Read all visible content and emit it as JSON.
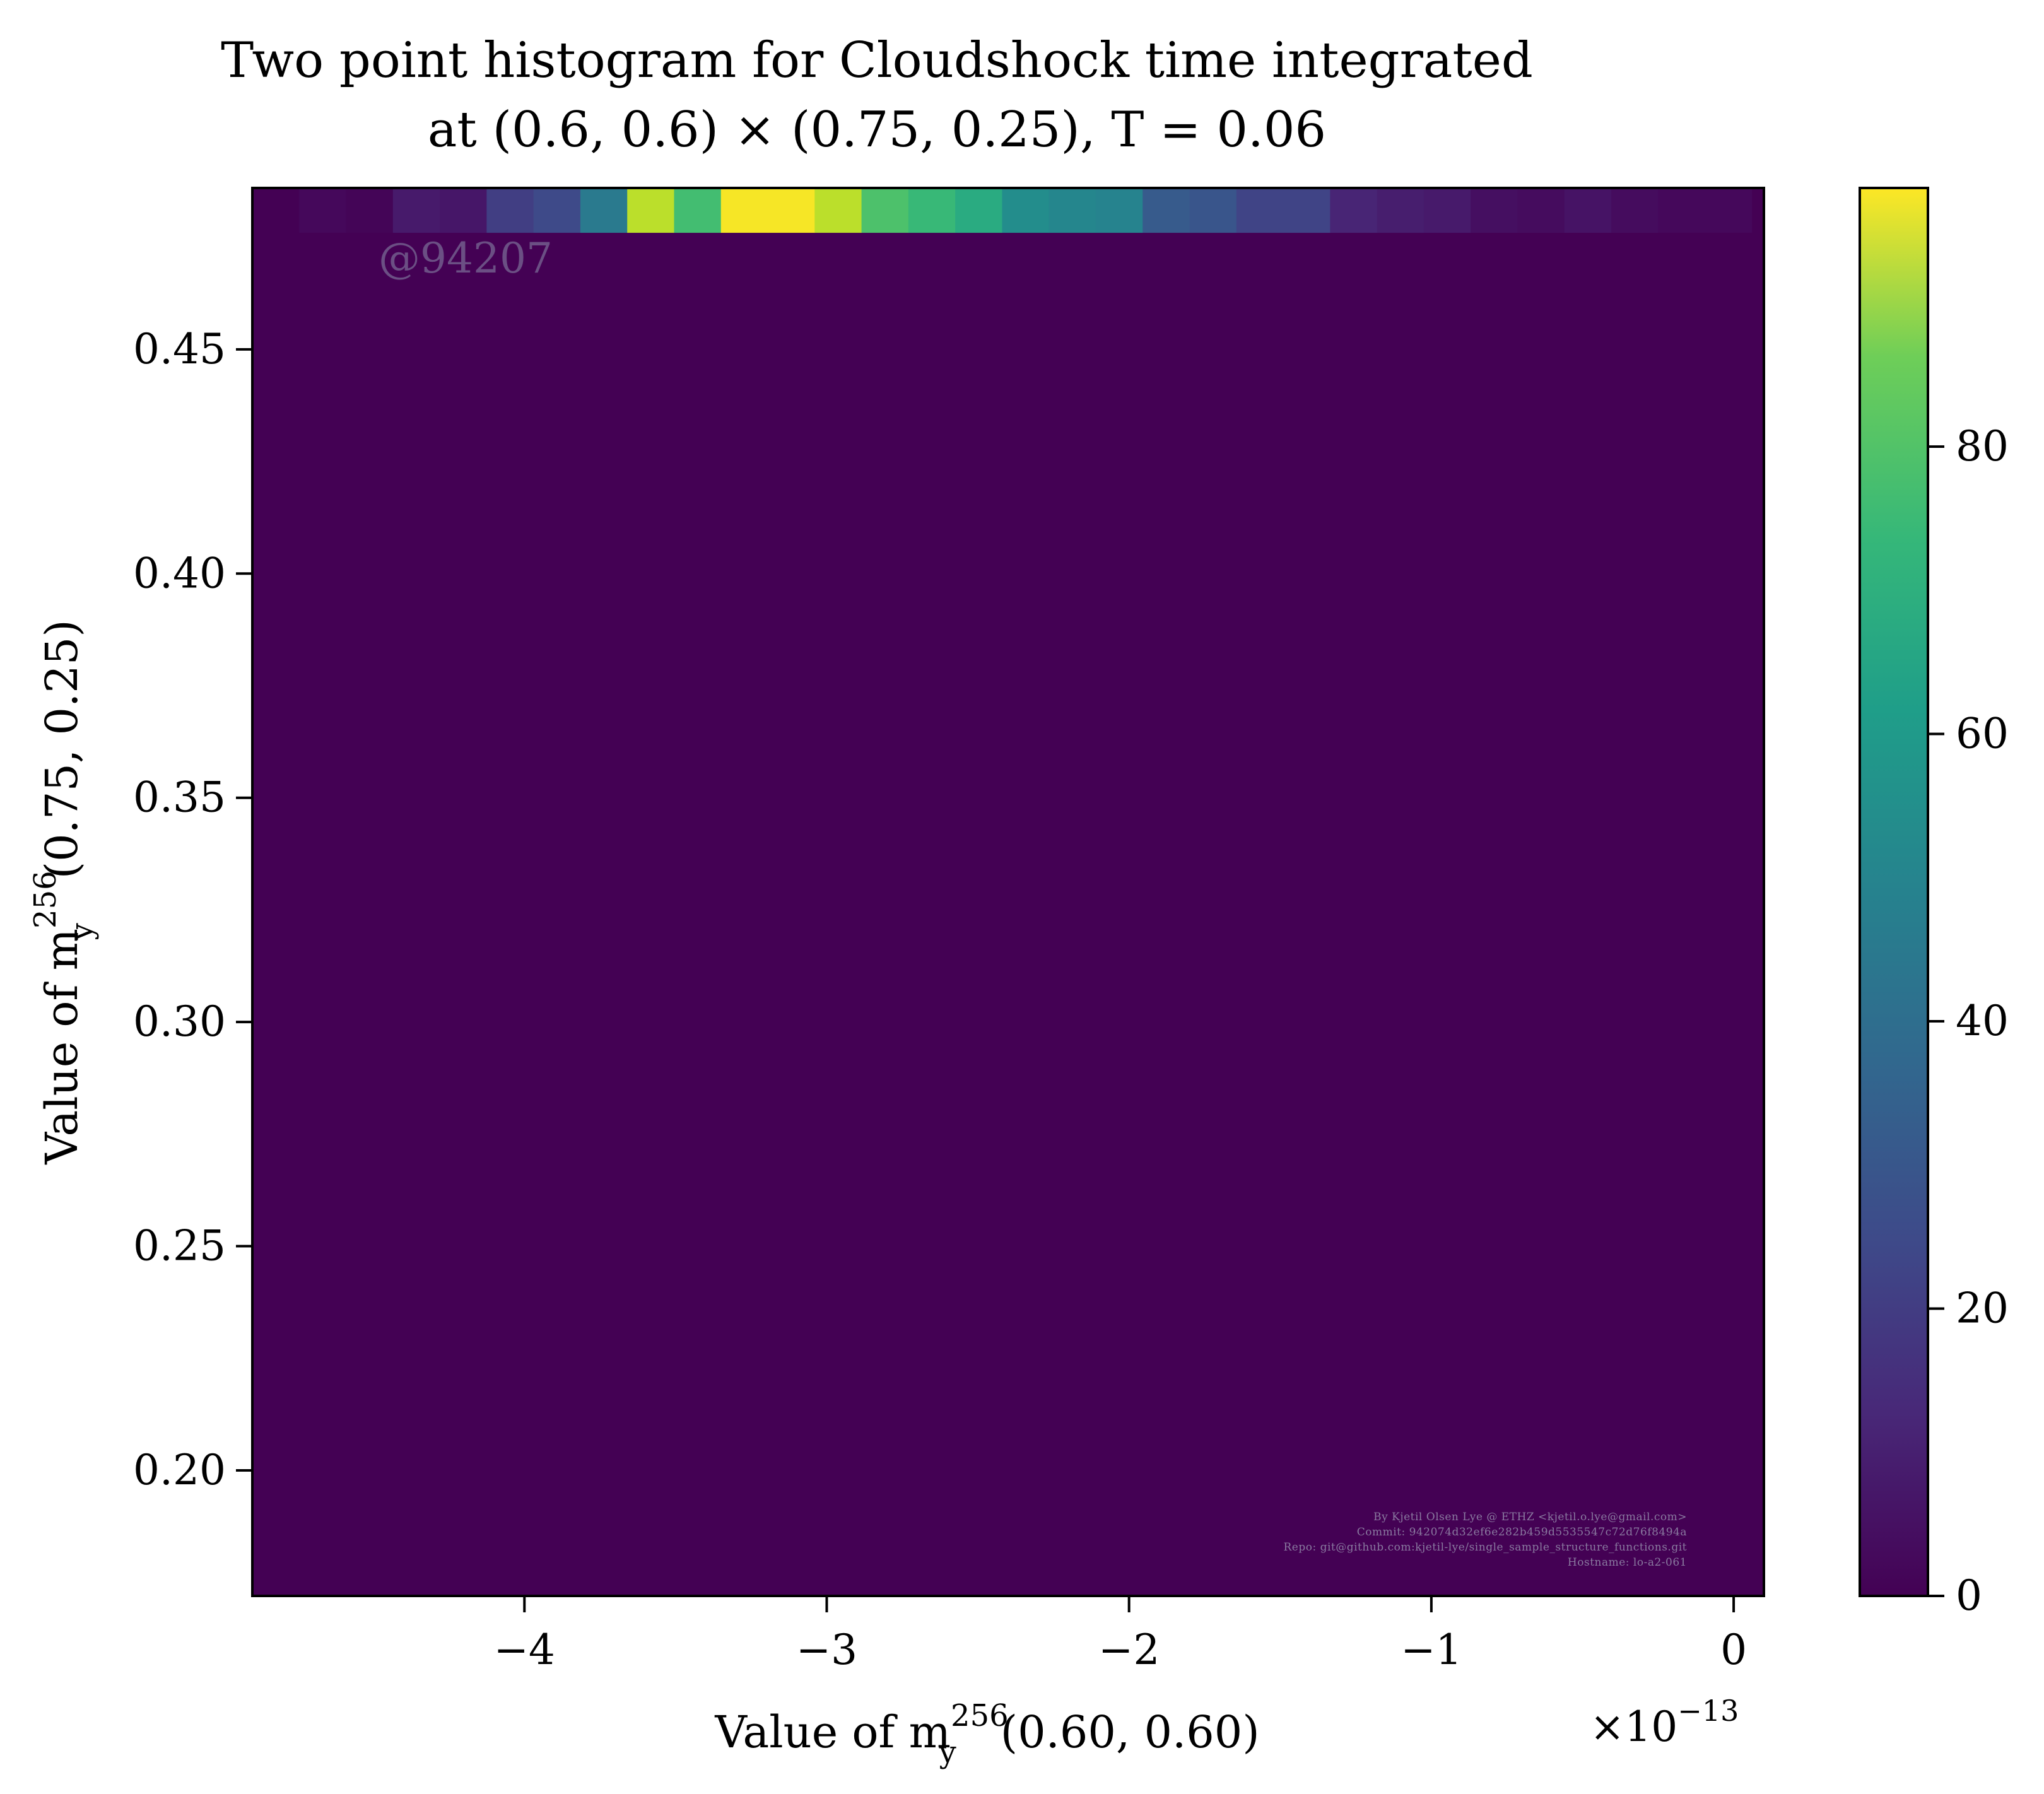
{
  "chart_data": {
    "type": "heatmap",
    "title": [
      "Two point histogram for Cloudshock time integrated",
      "at (0.6, 0.6) × (0.75, 0.25), T = 0.06"
    ],
    "xlabel": {
      "prefix": "Value of m",
      "sup": "256",
      "sub": "y",
      "suffix": "(0.60, 0.60)"
    },
    "ylabel": {
      "prefix": "Value of m",
      "sup": "256",
      "sub": "y",
      "suffix": "(0.75, 0.25)"
    },
    "x_exponent": {
      "base": "×10",
      "power": "−13"
    },
    "xlim": [
      -4.9,
      0.1
    ],
    "ylim": [
      0.172,
      0.486
    ],
    "x_ticks": [
      {
        "value": -4,
        "label": "−4"
      },
      {
        "value": -3,
        "label": "−3"
      },
      {
        "value": -2,
        "label": "−2"
      },
      {
        "value": -1,
        "label": "−1"
      },
      {
        "value": 0,
        "label": "0"
      }
    ],
    "y_ticks": [
      {
        "value": 0.2,
        "label": "0.20"
      },
      {
        "value": 0.25,
        "label": "0.25"
      },
      {
        "value": 0.3,
        "label": "0.30"
      },
      {
        "value": 0.35,
        "label": "0.35"
      },
      {
        "value": 0.4,
        "label": "0.40"
      },
      {
        "value": 0.45,
        "label": "0.45"
      }
    ],
    "colormap": "viridis",
    "colorbar": {
      "range": [
        0,
        98
      ],
      "ticks": [
        {
          "value": 0,
          "label": "0"
        },
        {
          "value": 20,
          "label": "20"
        },
        {
          "value": 40,
          "label": "40"
        },
        {
          "value": 60,
          "label": "60"
        },
        {
          "value": 80,
          "label": "80"
        }
      ]
    },
    "bins": {
      "x_edges_start": -4.9,
      "x_bin_width": 0.155,
      "y_top_row": [
        0.476,
        0.486
      ],
      "top_row_counts": [
        0,
        2,
        1,
        7,
        6,
        18,
        22,
        40,
        88,
        68,
        97,
        97,
        88,
        70,
        66,
        60,
        48,
        45,
        44,
        28,
        26,
        20,
        20,
        10,
        8,
        7,
        4,
        3,
        5,
        3,
        2,
        2
      ],
      "background_count": 0
    },
    "grid": false,
    "legend": "none"
  },
  "watermark": "@94207",
  "credits": [
    "By Kjetil Olsen Lye @ ETHZ <kjetil.o.lye@gmail.com>",
    "Commit: 942074d32ef6e282b459d5535547c72d76f8494a",
    "Repo: git@github.com:kjetil-lye/single_sample_structure_functions.git",
    "Hostname: lo-a2-061"
  ]
}
